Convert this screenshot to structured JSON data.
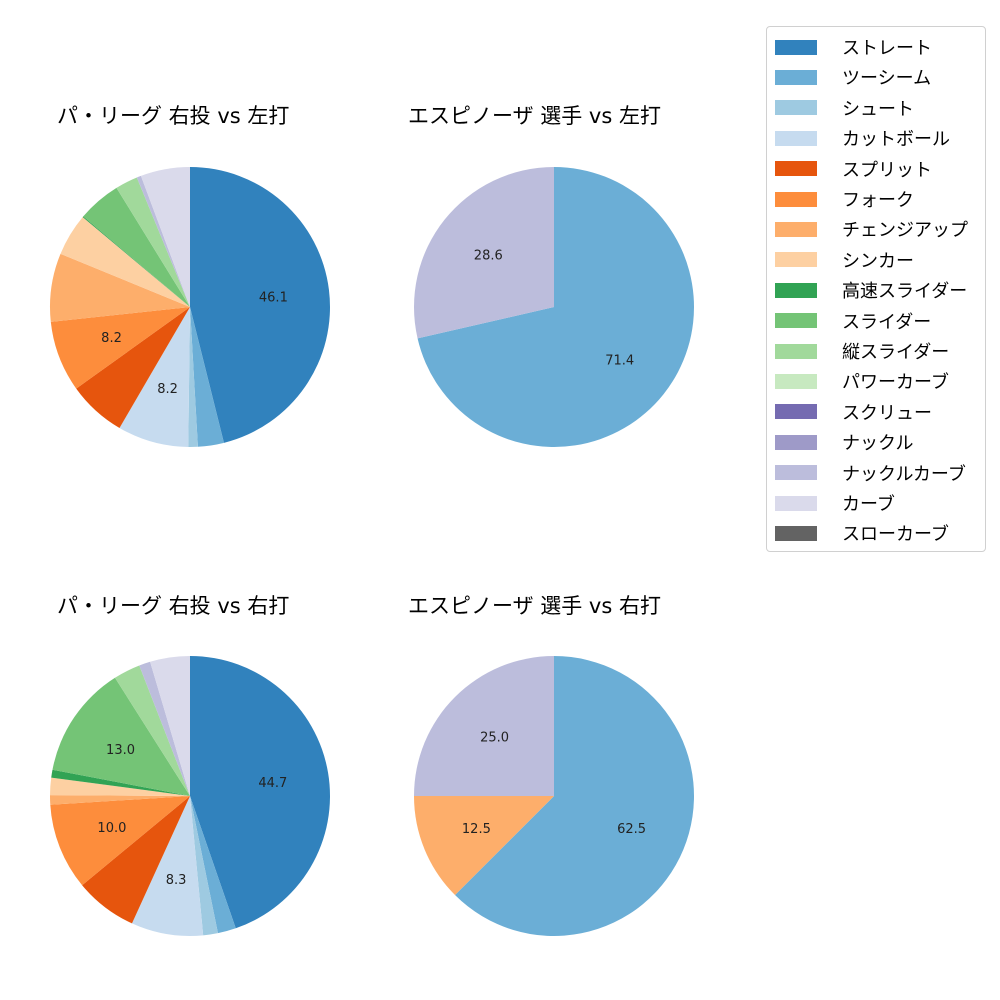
{
  "legend": {
    "items": [
      {
        "label": "ストレート",
        "color": "#3182bd"
      },
      {
        "label": "ツーシーム",
        "color": "#6baed6"
      },
      {
        "label": "シュート",
        "color": "#9ecae1"
      },
      {
        "label": "カットボール",
        "color": "#c6dbef"
      },
      {
        "label": "スプリット",
        "color": "#e6550d"
      },
      {
        "label": "フォーク",
        "color": "#fd8d3c"
      },
      {
        "label": "チェンジアップ",
        "color": "#fdae6b"
      },
      {
        "label": "シンカー",
        "color": "#fdd0a2"
      },
      {
        "label": "高速スライダー",
        "color": "#31a354"
      },
      {
        "label": "スライダー",
        "color": "#74c476"
      },
      {
        "label": "縦スライダー",
        "color": "#a1d99b"
      },
      {
        "label": "パワーカーブ",
        "color": "#c7e9c0"
      },
      {
        "label": "スクリュー",
        "color": "#756bb1"
      },
      {
        "label": "ナックル",
        "color": "#9e9ac8"
      },
      {
        "label": "ナックルカーブ",
        "color": "#bcbddc"
      },
      {
        "label": "カーブ",
        "color": "#dadaeb"
      },
      {
        "label": "スローカーブ",
        "color": "#636363"
      }
    ]
  },
  "chart_data": [
    {
      "type": "pie",
      "title": "パ・リーグ 右投 vs 左打",
      "categories": [
        "ストレート",
        "ツーシーム",
        "シュート",
        "カットボール",
        "スプリット",
        "フォーク",
        "チェンジアップ",
        "シンカー",
        "高速スライダー",
        "スライダー",
        "縦スライダー",
        "ナックルカーブ",
        "カーブ"
      ],
      "values": [
        46.1,
        3.0,
        1.1,
        8.2,
        6.7,
        8.2,
        7.9,
        4.9,
        0.1,
        5.0,
        2.6,
        0.5,
        5.7
      ],
      "labels_shown": [
        "46.1",
        "",
        "",
        "8.2",
        "",
        "8.2",
        "",
        "",
        "",
        "",
        "",
        "",
        ""
      ],
      "start_angle": 90,
      "direction": "clockwise"
    },
    {
      "type": "pie",
      "title": "エスピノーザ 選手 vs 左打",
      "categories": [
        "ツーシーム",
        "ナックルカーブ"
      ],
      "values": [
        71.4,
        28.6
      ],
      "labels_shown": [
        "71.4",
        "28.6"
      ],
      "start_angle": 90,
      "direction": "clockwise"
    },
    {
      "type": "pie",
      "title": "パ・リーグ 右投 vs 右打",
      "categories": [
        "ストレート",
        "ツーシーム",
        "シュート",
        "カットボール",
        "スプリット",
        "フォーク",
        "チェンジアップ",
        "シンカー",
        "高速スライダー",
        "スライダー",
        "縦スライダー",
        "ナックルカーブ",
        "カーブ"
      ],
      "values": [
        44.7,
        2.1,
        1.7,
        8.3,
        7.2,
        10.0,
        1.1,
        2.0,
        0.9,
        13.0,
        3.1,
        1.3,
        4.6
      ],
      "labels_shown": [
        "44.7",
        "",
        "",
        "8.3",
        "",
        "10.0",
        "",
        "",
        "",
        "13.0",
        "",
        "",
        ""
      ],
      "start_angle": 90,
      "direction": "clockwise"
    },
    {
      "type": "pie",
      "title": "エスピノーザ 選手 vs 右打",
      "categories": [
        "ツーシーム",
        "チェンジアップ",
        "ナックルカーブ"
      ],
      "values": [
        62.5,
        12.5,
        25.0
      ],
      "labels_shown": [
        "62.5",
        "12.5",
        "25.0"
      ],
      "start_angle": 90,
      "direction": "clockwise"
    }
  ]
}
